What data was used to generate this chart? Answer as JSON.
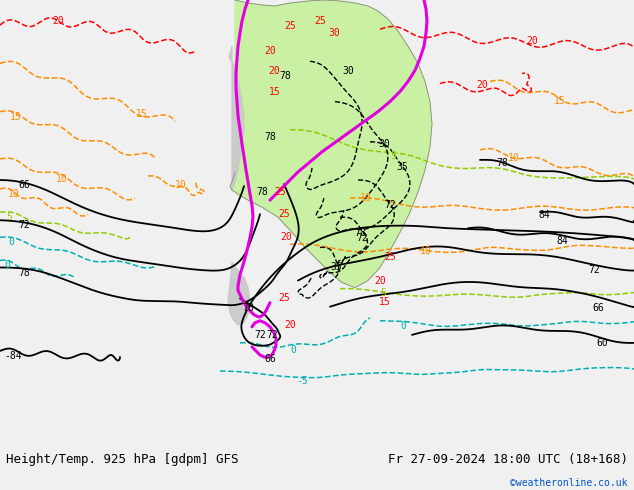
{
  "title_left": "Height/Temp. 925 hPa [gdpm] GFS",
  "title_right": "Fr 27-09-2024 18:00 UTC (18+168)",
  "credit": "©weatheronline.co.uk",
  "fig_width": 6.34,
  "fig_height": 4.9,
  "dpi": 100,
  "bg_color": "#f0f0f0",
  "map_bg_color": "#e8e8e8",
  "ocean_color": "#dcdcdc",
  "green_fill": "#c8f0a0",
  "gray_land": "#c8c8c8",
  "black": "#000000",
  "magenta": "#e000e0",
  "red": "#ff0000",
  "orange": "#ff8c00",
  "green_dash": "#90cc00",
  "cyan_dash": "#00b0b0",
  "title_fontsize": 9,
  "credit_fontsize": 7,
  "credit_color": "#0055cc"
}
